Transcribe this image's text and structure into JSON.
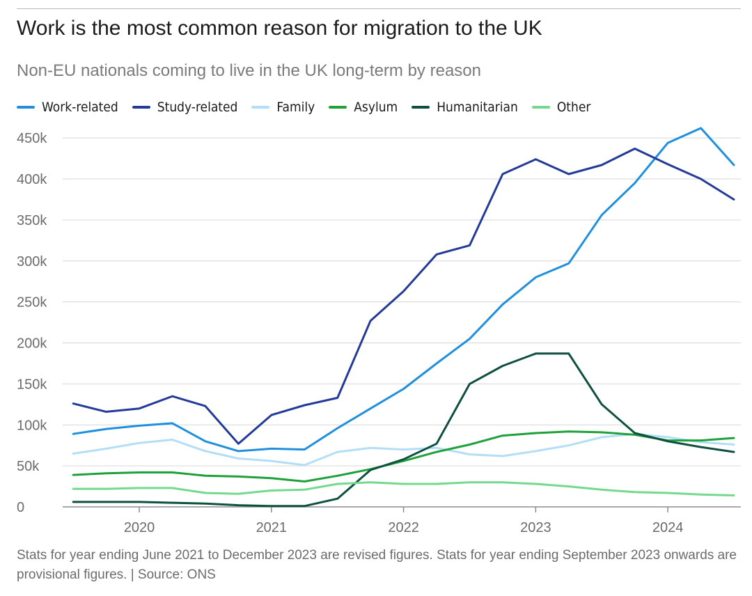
{
  "title": "Work is the most common reason for migration to the UK",
  "subtitle": "Non-EU nationals coming to live in the UK long-term by reason",
  "note": "Stats for year ending June 2021 to December 2023 are revised figures. Stats for year ending September 2023 onwards are provisional figures. | Source: ONS",
  "chart_data": {
    "type": "line",
    "x": [
      2019.5,
      2019.75,
      2020.0,
      2020.25,
      2020.5,
      2020.75,
      2021.0,
      2021.25,
      2021.5,
      2021.75,
      2022.0,
      2022.25,
      2022.5,
      2022.75,
      2023.0,
      2023.25,
      2023.5,
      2023.75,
      2024.0,
      2024.25,
      2024.5
    ],
    "xticks": [
      2020,
      2021,
      2022,
      2023,
      2024
    ],
    "xtick_labels": [
      "2020",
      "2021",
      "2022",
      "2023",
      "2024"
    ],
    "xlim": [
      2019.42,
      2024.5
    ],
    "ylim": [
      0,
      460000
    ],
    "yticks": [
      0,
      50000,
      100000,
      150000,
      200000,
      250000,
      300000,
      350000,
      400000,
      450000
    ],
    "ytick_labels": [
      "0",
      "50k",
      "100k",
      "150k",
      "200k",
      "250k",
      "300k",
      "350k",
      "400k",
      "450k"
    ],
    "grid": true,
    "legend_position": "top-left",
    "series": [
      {
        "name": "Work-related",
        "color": "#1f8fde",
        "values": [
          89000,
          95000,
          99000,
          102000,
          80000,
          68000,
          71000,
          70000,
          96000,
          120000,
          144000,
          175000,
          205000,
          247000,
          280000,
          297000,
          356000,
          395000,
          444000,
          462000,
          417000
        ]
      },
      {
        "name": "Study-related",
        "color": "#233a99",
        "values": [
          126000,
          116000,
          120000,
          135000,
          123000,
          77000,
          112000,
          124000,
          133000,
          227000,
          263000,
          308000,
          319000,
          406000,
          424000,
          406000,
          417000,
          437000,
          418000,
          400000,
          375000
        ]
      },
      {
        "name": "Family",
        "color": "#b3def7",
        "values": [
          65000,
          71000,
          78000,
          82000,
          68000,
          59000,
          56000,
          51000,
          67000,
          72000,
          70000,
          72000,
          64000,
          62000,
          68000,
          75000,
          85000,
          89000,
          85000,
          79000,
          76000
        ]
      },
      {
        "name": "Asylum",
        "color": "#1ea03a",
        "values": [
          39000,
          41000,
          42000,
          42000,
          38000,
          37000,
          35000,
          31000,
          38000,
          46000,
          56000,
          67000,
          76000,
          87000,
          90000,
          92000,
          91000,
          88000,
          81000,
          81000,
          84000
        ]
      },
      {
        "name": "Humanitarian",
        "color": "#0e4f40",
        "values": [
          6000,
          6000,
          6000,
          5000,
          4000,
          2000,
          1000,
          1000,
          10000,
          45000,
          58000,
          77000,
          150000,
          172000,
          187000,
          187000,
          125000,
          90000,
          80000,
          73000,
          67000
        ]
      },
      {
        "name": "Other",
        "color": "#74d98e",
        "values": [
          22000,
          22000,
          23000,
          23000,
          17000,
          16000,
          20000,
          21000,
          28000,
          30000,
          28000,
          28000,
          30000,
          30000,
          28000,
          25000,
          21000,
          18000,
          17000,
          15000,
          14000
        ]
      }
    ]
  }
}
